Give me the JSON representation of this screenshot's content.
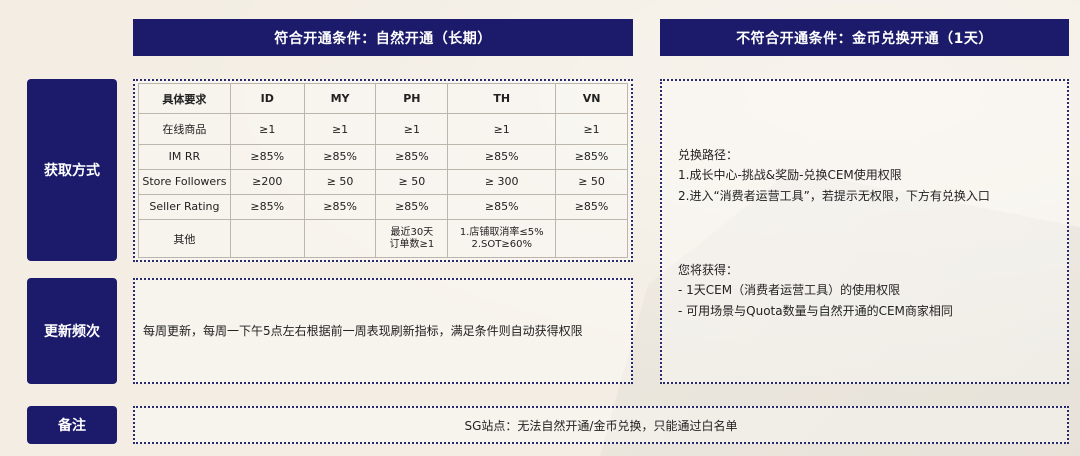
{
  "headers": {
    "left": "符合开通条件：自然开通（长期）",
    "right": "不符合开通条件：金币兑换开通（1天）"
  },
  "row_labels": {
    "method": "获取方式",
    "frequency": "更新频次",
    "note": "备注"
  },
  "table": {
    "columns": [
      "具体要求",
      "ID",
      "MY",
      "PH",
      "TH",
      "VN"
    ],
    "rows": [
      [
        "在线商品",
        "≥1",
        "≥1",
        "≥1",
        "≥1",
        "≥1"
      ],
      [
        "IM RR",
        "≥85%",
        "≥85%",
        "≥85%",
        "≥85%",
        "≥85%"
      ],
      [
        "Store Followers",
        "≥200",
        "≥ 50",
        "≥ 50",
        "≥ 300",
        "≥ 50"
      ],
      [
        "Seller Rating",
        "≥85%",
        "≥85%",
        "≥85%",
        "≥85%",
        "≥85%"
      ]
    ],
    "other_row": {
      "label": "其他",
      "id": "",
      "my": "",
      "ph_line1": "最近30天",
      "ph_line2": "订单数≥1",
      "th_line1": "1.店铺取消率≤5%",
      "th_line2": "2.SOT≥60%",
      "vn": ""
    }
  },
  "frequency_text": "每周更新，每周一下午5点左右根据前一周表现刷新指标，满足条件则自动获得权限",
  "right_panel": {
    "path_title": "兑换路径：",
    "path_step1": "1.成长中心-挑战&奖励-兑换CEM使用权限",
    "path_step2": "2.进入“消费者运营工具”，若提示无权限，下方有兑换入口",
    "gain_title": "您将获得：",
    "gain_item1": "- 1天CEM（消费者运营工具）的使用权限",
    "gain_item2": "- 可用场景与Quota数量与自然开通的CEM商家相同"
  },
  "note_text": "SG站点：无法自然开通/金币兑换，只能通过白名单"
}
